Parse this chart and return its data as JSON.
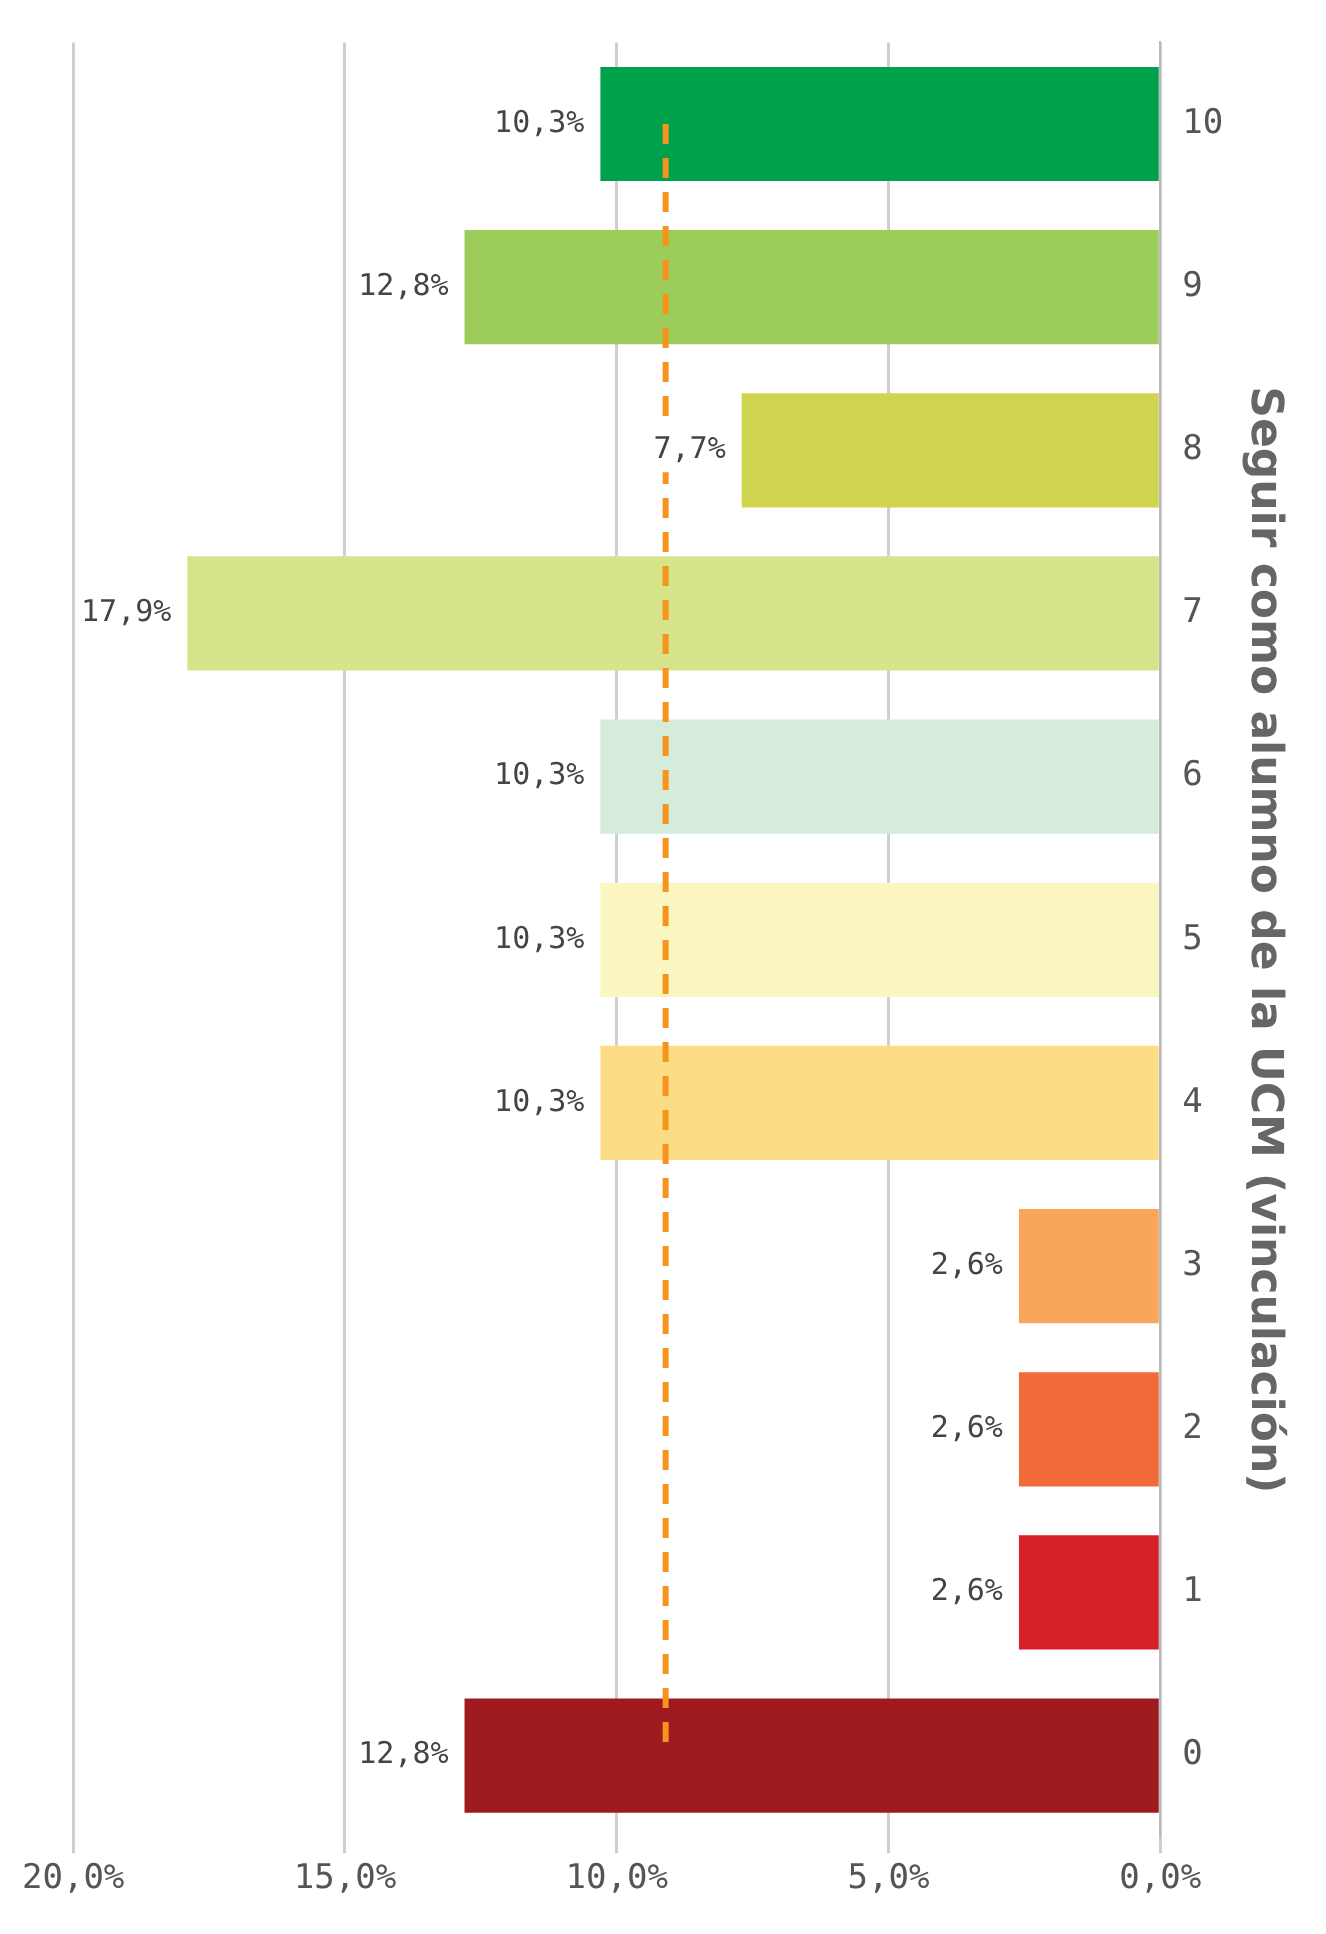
{
  "chart_data": {
    "type": "bar",
    "orientation": "horizontal",
    "ylabel": "Seguir como alumno de la UCM (vinculación)",
    "categories": [
      "10",
      "9",
      "8",
      "7",
      "6",
      "5",
      "4",
      "3",
      "2",
      "1",
      "0"
    ],
    "values": [
      10.3,
      12.8,
      7.7,
      17.9,
      10.3,
      10.3,
      10.3,
      2.6,
      2.6,
      2.6,
      12.8
    ],
    "value_labels": [
      "10,3%",
      "12,8%",
      "7,7%",
      "17,9%",
      "10,3%",
      "10,3%",
      "10,3%",
      "2,6%",
      "2,6%",
      "2,6%",
      "12,8%"
    ],
    "colors": [
      "#00a14b",
      "#9ccc59",
      "#cfd54e",
      "#d7e48a",
      "#d4ecd9",
      "#fbf6c0",
      "#fcdc84",
      "#f9a65a",
      "#f26a3a",
      "#d42027",
      "#9e1a1f"
    ],
    "xlim": [
      20,
      0
    ],
    "xticks": [
      {
        "value": 20,
        "label": "20,0%"
      },
      {
        "value": 15,
        "label": "15,0%"
      },
      {
        "value": 10,
        "label": "10,0%"
      },
      {
        "value": 5,
        "label": "5,0%"
      },
      {
        "value": 0,
        "label": "0,0%"
      }
    ],
    "ref_lines": [
      {
        "axis": "x",
        "value": 9.1,
        "color": "#f7941d",
        "line_style": "dashed"
      }
    ],
    "grid": "x",
    "legend": false
  }
}
